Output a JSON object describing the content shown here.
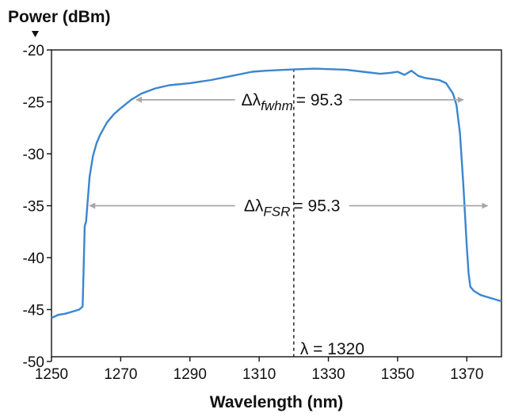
{
  "chart_data": {
    "type": "line",
    "title": "",
    "ylabel": "Power (dBm)",
    "xlabel": "Wavelength (nm)",
    "xlim": [
      1250,
      1380
    ],
    "ylim": [
      -51,
      -20
    ],
    "x_ticks": [
      1250,
      1270,
      1290,
      1310,
      1330,
      1350,
      1370
    ],
    "x_tick_labels": [
      "1250",
      "1270",
      "1290",
      "1310",
      "1330",
      "1350",
      "1370"
    ],
    "y_ticks": [
      -20,
      -25,
      -30,
      -35,
      -40,
      -45,
      -50
    ],
    "y_tick_labels": [
      "-20",
      "-25",
      "-30",
      "-35",
      "-40",
      "-45",
      "-50"
    ],
    "grid": false,
    "colors": {
      "series": "#3a86d0",
      "arrows": "#a8a8a8",
      "marker": "#222222"
    },
    "series": [
      {
        "x": [
          1250,
          1252,
          1254,
          1256,
          1258,
          1259,
          1259.3,
          1259.6,
          1260,
          1261,
          1262,
          1263,
          1264,
          1266,
          1268,
          1270,
          1273,
          1276,
          1280,
          1284,
          1290,
          1296,
          1302,
          1308,
          1312,
          1318,
          1322,
          1326,
          1330,
          1335,
          1340,
          1345,
          1348,
          1350,
          1352,
          1354,
          1356,
          1358,
          1360,
          1362,
          1364,
          1366,
          1367,
          1368,
          1369,
          1370,
          1370.5,
          1371,
          1371.5,
          1372,
          1374,
          1377,
          1380
        ],
        "y": [
          -45.8,
          -45.5,
          -45.4,
          -45.2,
          -45.0,
          -44.7,
          -41,
          -37,
          -36.5,
          -32.2,
          -30.2,
          -29.0,
          -28.2,
          -27.0,
          -26.2,
          -25.6,
          -24.8,
          -24.2,
          -23.7,
          -23.4,
          -23.2,
          -22.9,
          -22.5,
          -22.1,
          -22.0,
          -21.9,
          -21.85,
          -21.8,
          -21.85,
          -21.9,
          -22.1,
          -22.3,
          -22.2,
          -22.1,
          -22.4,
          -22.0,
          -22.5,
          -22.7,
          -22.8,
          -22.9,
          -23.2,
          -24.2,
          -25.3,
          -28.0,
          -33.0,
          -39.0,
          -41.5,
          -42.8,
          -43.0,
          -43.2,
          -43.6,
          -43.9,
          -44.2
        ]
      }
    ],
    "annotations": {
      "fwhm": {
        "lambda": "Δλ",
        "sub": "fwhm",
        "value": "= 95.3",
        "y": -24.8,
        "x_start": 1274.5,
        "x_end": 1369,
        "gap_start": 1303,
        "gap_end": 1336
      },
      "fsr": {
        "lambda": "Δλ",
        "sub": "FSR",
        "value": "= 95.3",
        "y": -35,
        "x_start": 1261,
        "x_end": 1376,
        "gap_start": 1303,
        "gap_end": 1336
      },
      "marker": {
        "x": 1320,
        "label": "λ = 1320"
      }
    }
  }
}
